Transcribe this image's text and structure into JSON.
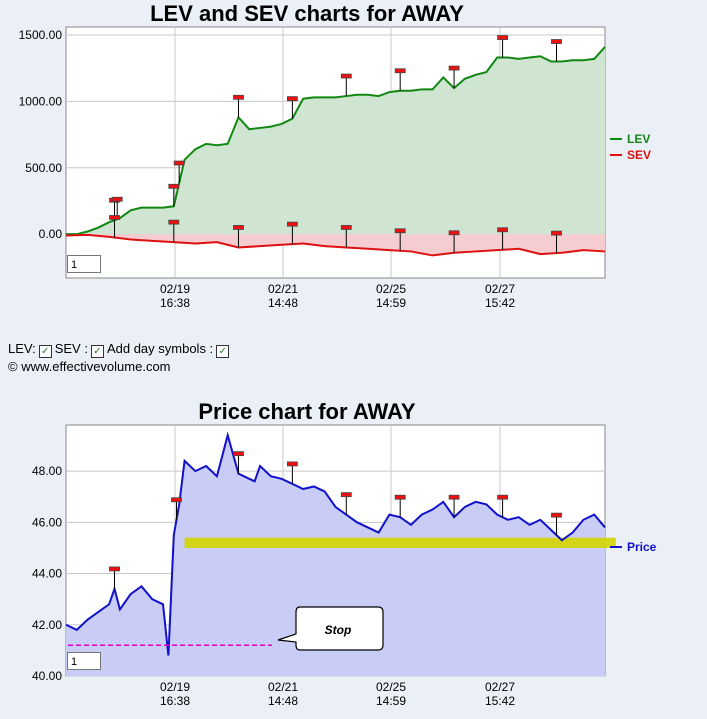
{
  "chart_data": [
    {
      "type": "line",
      "title": "LEV and SEV charts for AWAY",
      "yticks": [
        "1500.00",
        "1000.00",
        "500.00",
        "0.00"
      ],
      "ylim": [
        -330,
        1560
      ],
      "xticks": [
        {
          "date": "02/19",
          "time": "16:38"
        },
        {
          "date": "02/21",
          "time": "14:48"
        },
        {
          "date": "02/25",
          "time": "14:59"
        },
        {
          "date": "02/27",
          "time": "15:42"
        }
      ],
      "series": [
        {
          "name": "LEV",
          "color": "#118811",
          "x": [
            0,
            2,
            4,
            6,
            8,
            10,
            12,
            14,
            16,
            18,
            20,
            22,
            24,
            26,
            28,
            30,
            32,
            34,
            36,
            38,
            40,
            42,
            44,
            46,
            48,
            50,
            52,
            54,
            56,
            58,
            60,
            62,
            64,
            66,
            68,
            70,
            72,
            74,
            76,
            78,
            80,
            82,
            84,
            86,
            88,
            90,
            92,
            94,
            96,
            98,
            100
          ],
          "values": [
            0,
            0,
            20,
            50,
            90,
            120,
            180,
            200,
            200,
            200,
            210,
            560,
            640,
            680,
            670,
            680,
            880,
            790,
            800,
            810,
            830,
            870,
            1020,
            1030,
            1030,
            1030,
            1040,
            1050,
            1050,
            1040,
            1070,
            1080,
            1080,
            1090,
            1090,
            1180,
            1100,
            1170,
            1200,
            1220,
            1330,
            1330,
            1320,
            1330,
            1340,
            1300,
            1300,
            1310,
            1310,
            1320,
            1410
          ]
        },
        {
          "name": "SEV",
          "color": "#dd1111",
          "x": [
            0,
            4,
            8,
            12,
            16,
            20,
            24,
            28,
            32,
            36,
            40,
            44,
            48,
            52,
            56,
            60,
            64,
            68,
            72,
            76,
            80,
            84,
            88,
            92,
            96,
            100
          ],
          "values": [
            -10,
            -5,
            -20,
            -40,
            -50,
            -60,
            -70,
            -60,
            -100,
            -90,
            -80,
            -70,
            -90,
            -100,
            -110,
            -120,
            -130,
            -160,
            -140,
            -130,
            -120,
            -110,
            -150,
            -140,
            -120,
            -130
          ]
        }
      ],
      "markers": [
        {
          "series": "LEV",
          "x": 9
        },
        {
          "series": "LEV",
          "x": 9.5
        },
        {
          "series": "LEV",
          "x": 20
        },
        {
          "series": "LEV",
          "x": 21
        },
        {
          "series": "LEV",
          "x": 32
        },
        {
          "series": "LEV",
          "x": 42
        },
        {
          "series": "LEV",
          "x": 52
        },
        {
          "series": "LEV",
          "x": 62
        },
        {
          "series": "LEV",
          "x": 72
        },
        {
          "series": "LEV",
          "x": 81
        },
        {
          "series": "LEV",
          "x": 91
        },
        {
          "series": "SEV",
          "x": 9
        },
        {
          "series": "SEV",
          "x": 20
        },
        {
          "series": "SEV",
          "x": 32
        },
        {
          "series": "SEV",
          "x": 42
        },
        {
          "series": "SEV",
          "x": 52
        },
        {
          "series": "SEV",
          "x": 62
        },
        {
          "series": "SEV",
          "x": 72
        },
        {
          "series": "SEV",
          "x": 81
        },
        {
          "series": "SEV",
          "x": 91
        }
      ],
      "legend": [
        {
          "label": "LEV",
          "color": "#118811"
        },
        {
          "label": "SEV",
          "color": "#dd1111"
        }
      ],
      "legend_position": "right",
      "zoom_value": "1",
      "grid": true
    },
    {
      "type": "line",
      "title": "Price chart for AWAY",
      "yticks": [
        "48.00",
        "46.00",
        "44.00",
        "42.00",
        "40.00"
      ],
      "ylim": [
        40,
        49.8
      ],
      "xticks": [
        {
          "date": "02/19",
          "time": "16:38"
        },
        {
          "date": "02/21",
          "time": "14:48"
        },
        {
          "date": "02/25",
          "time": "14:59"
        },
        {
          "date": "02/27",
          "time": "15:42"
        }
      ],
      "series": [
        {
          "name": "Price",
          "color": "#1111cc",
          "x": [
            0,
            2,
            4,
            6,
            8,
            9,
            10,
            12,
            14,
            16,
            18,
            19,
            20,
            21,
            22,
            24,
            26,
            28,
            30,
            32,
            34,
            35,
            36,
            38,
            40,
            42,
            44,
            46,
            48,
            50,
            52,
            54,
            56,
            58,
            60,
            62,
            64,
            66,
            68,
            70,
            72,
            74,
            76,
            78,
            80,
            82,
            84,
            86,
            88,
            90,
            92,
            94,
            96,
            98,
            100
          ],
          "values": [
            42,
            41.8,
            42.2,
            42.5,
            42.8,
            43.4,
            42.6,
            43.2,
            43.5,
            43.0,
            42.8,
            40.8,
            45.5,
            46.7,
            48.4,
            48.0,
            48.2,
            47.8,
            49.4,
            47.9,
            47.7,
            47.6,
            48.2,
            47.8,
            47.7,
            47.5,
            47.3,
            47.4,
            47.2,
            46.6,
            46.3,
            46.0,
            45.8,
            45.6,
            46.3,
            46.2,
            45.9,
            46.3,
            46.5,
            46.8,
            46.2,
            46.6,
            46.8,
            46.7,
            46.3,
            46.1,
            46.2,
            45.9,
            46.1,
            45.7,
            45.3,
            45.6,
            46.1,
            46.3,
            45.8
          ]
        }
      ],
      "markers": [
        {
          "series": "Price",
          "x": 9
        },
        {
          "series": "Price",
          "x": 20.5
        },
        {
          "series": "Price",
          "x": 32
        },
        {
          "series": "Price",
          "x": 42
        },
        {
          "series": "Price",
          "x": 52
        },
        {
          "series": "Price",
          "x": 62
        },
        {
          "series": "Price",
          "x": 72
        },
        {
          "series": "Price",
          "x": 81
        },
        {
          "series": "Price",
          "x": 91
        }
      ],
      "price_band": {
        "low": 45.0,
        "high": 45.4,
        "color": "#d4d400"
      },
      "stop_level": 41.2,
      "stop_label": "Stop",
      "legend": [
        {
          "label": "Price",
          "color": "#1111cc"
        }
      ],
      "legend_position": "right",
      "zoom_value": "1",
      "grid": true
    }
  ],
  "controls": {
    "lev_label": "LEV:",
    "sev_label": "SEV :",
    "day_symbols_label": "Add day symbols :",
    "check_mark": "✓"
  },
  "copyright": "© www.effectivevolume.com"
}
